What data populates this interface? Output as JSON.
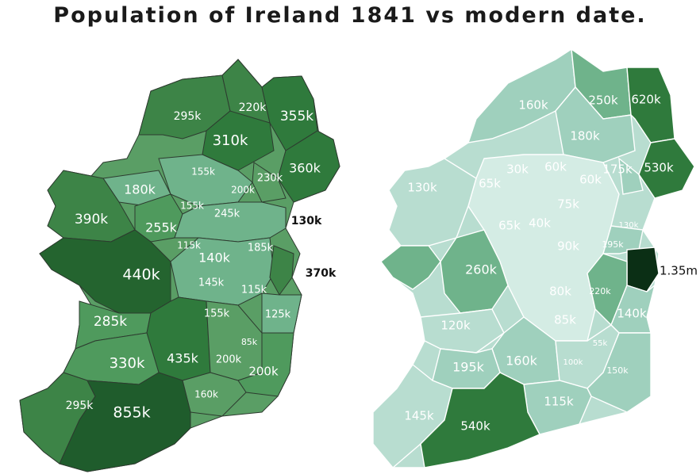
{
  "title": "Population of Ireland 1841 vs modern date.",
  "colors": {
    "darkest": "#0b2f15",
    "dark": "#1f5c2c",
    "mid_dark": "#2f7a3c",
    "mid": "#4f9a5d",
    "mid_light": "#6fb38b",
    "light": "#9fd0bd",
    "lighter": "#b8ddd0",
    "lightest": "#d4ece4"
  },
  "map_1841": {
    "labels": [
      "295k",
      "220k",
      "355k",
      "310k",
      "360k",
      "155k",
      "230k",
      "180k",
      "200k",
      "155k",
      "245k",
      "390k",
      "255k",
      "130k",
      "115k",
      "140k",
      "185k",
      "440k",
      "370k",
      "145k",
      "115k",
      "155k",
      "125k",
      "285k",
      "85k",
      "330k",
      "435k",
      "200k",
      "200k",
      "160k",
      "295k",
      "855k"
    ]
  },
  "map_modern": {
    "labels": [
      "160k",
      "250k",
      "620k",
      "180k",
      "30k",
      "60k",
      "175k",
      "530k",
      "130k",
      "65k",
      "60k",
      "75k",
      "65k",
      "40k",
      "130k",
      "195k",
      "90k",
      "260k",
      "1.35m",
      "80k",
      "220k",
      "140k",
      "85k",
      "120k",
      "55k",
      "160k",
      "100k",
      "195k",
      "150k",
      "115k",
      "145k",
      "540k"
    ]
  }
}
